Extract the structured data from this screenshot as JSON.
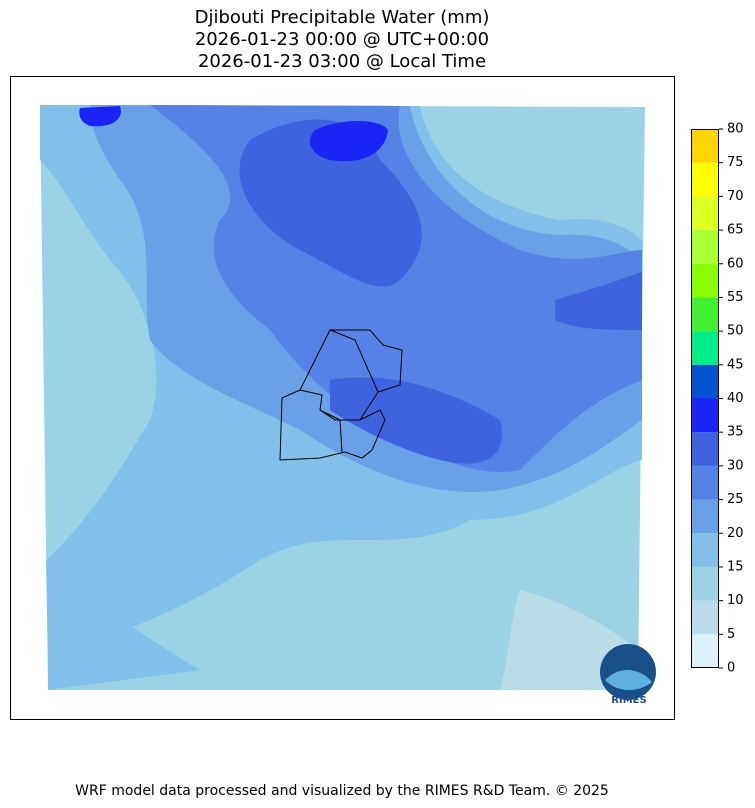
{
  "title": [
    "Djibouti Precipitable Water (mm)",
    "2026-01-23 00:00 @ UTC+00:00",
    "2026-01-23 03:00 @ Local Time"
  ],
  "colorbar": {
    "ticks": [
      0,
      5,
      10,
      15,
      20,
      25,
      30,
      35,
      40,
      45,
      50,
      55,
      60,
      65,
      70,
      75,
      80
    ],
    "colors": [
      "#ddeff7",
      "#b8dce8",
      "#9bd2e6",
      "#82c0ea",
      "#6aa0e8",
      "#5582e4",
      "#3f62de",
      "#1a24f5",
      "#0052cf",
      "#00ee88",
      "#44ee33",
      "#88ff00",
      "#aaff33",
      "#ddff22",
      "#ffff00",
      "#ffd500"
    ]
  },
  "logo": "RIMES",
  "footer": "WRF model data processed and visualized by the RIMES R&D Team. © 2025"
}
